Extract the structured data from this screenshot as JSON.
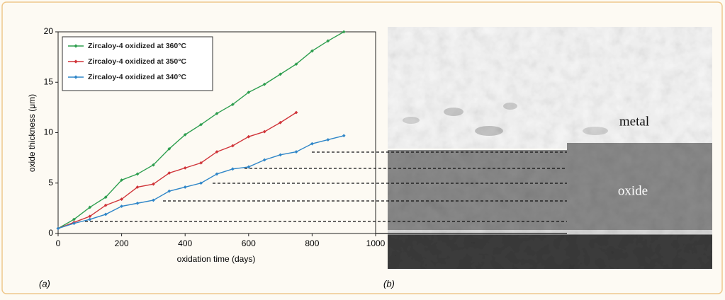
{
  "chart_data": {
    "type": "line",
    "xlabel": "oxidation time (days)",
    "ylabel": "oxide thickness (μm)",
    "xlim": [
      0,
      1000
    ],
    "xticks": [
      0,
      200,
      400,
      600,
      800,
      1000
    ],
    "ylim": [
      0,
      20
    ],
    "yticks": [
      0,
      5,
      10,
      15,
      20
    ],
    "legend": "upper left",
    "series": [
      {
        "name": "Zircaloy-4 oxidized at 360°C",
        "color": "#2e9e4f",
        "x": [
          0,
          50,
          100,
          150,
          200,
          250,
          300,
          350,
          400,
          450,
          500,
          550,
          600,
          650,
          700,
          750,
          800,
          850,
          900
        ],
        "values": [
          0.5,
          1.4,
          2.6,
          3.6,
          5.3,
          5.9,
          6.8,
          8.4,
          9.8,
          10.8,
          11.9,
          12.8,
          14.0,
          14.8,
          15.8,
          16.8,
          18.1,
          19.1,
          20
        ]
      },
      {
        "name": "Zircaloy-4 oxidized at 350°C",
        "color": "#d0353a",
        "x": [
          0,
          50,
          100,
          150,
          200,
          250,
          300,
          350,
          400,
          450,
          500,
          550,
          600,
          650,
          700,
          750
        ],
        "values": [
          0.5,
          1.1,
          1.7,
          2.8,
          3.4,
          4.6,
          4.9,
          6.0,
          6.5,
          7.0,
          8.1,
          8.7,
          9.6,
          10.1,
          11.0,
          12.0
        ]
      },
      {
        "name": "Zircaloy-4 oxidized at 340°C",
        "color": "#2f86c8",
        "x": [
          0,
          50,
          100,
          150,
          200,
          250,
          300,
          350,
          400,
          450,
          500,
          550,
          600,
          650,
          700,
          750,
          800,
          850,
          900
        ],
        "values": [
          0.5,
          1.0,
          1.4,
          1.9,
          2.7,
          3.0,
          3.3,
          4.2,
          4.6,
          5.0,
          5.9,
          6.4,
          6.6,
          7.3,
          7.8,
          8.1,
          8.9,
          9.3,
          9.7
        ]
      }
    ]
  },
  "figure": {
    "panel_a": "(a)",
    "panel_b": "(b)",
    "image_labels": [
      "metal",
      "oxide"
    ]
  }
}
